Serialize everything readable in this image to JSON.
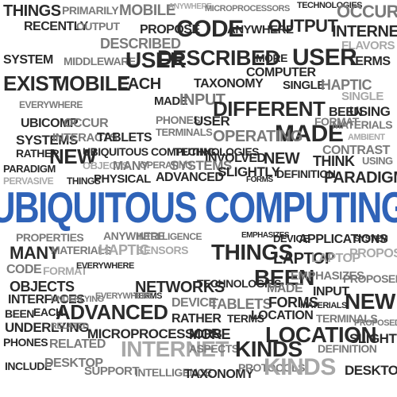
{
  "title": "UBIQUITOUS COMPUTING",
  "colors": {
    "title": "#2f63b8",
    "dark": "#2b2b2b",
    "mid": "#7a7a7a",
    "light": "#a8a8a8",
    "background": "#ffffff"
  },
  "words": [
    "THINGS",
    "PRIMARILY",
    "MOBILE",
    "ANYWHERE",
    "MICROPROCESSORS",
    "TECHNOLOGIES",
    "OCCUR",
    "RECENTLY",
    "OUTPUT",
    "PROPOSE",
    "CODE",
    "ANYWHERE",
    "OUTPUT",
    "INTERNET",
    "DESCRIBED",
    "FLAVORS",
    "SYSTEM",
    "MIDDLEWARE",
    "USER",
    "DESCRIBED",
    "MORE",
    "USER",
    "TERMS",
    "EXIST",
    "MOBILE",
    "EACH",
    "TAXONOMY",
    "COMPUTER",
    "SINGLE",
    "HAPTIC",
    "SINGLE",
    "MADE",
    "INPUT",
    "DIFFERENT",
    "EVERYWHERE",
    "BEEN",
    "USING",
    "UBICOMP",
    "OCCUR",
    "PHONES",
    "USER",
    "MADE",
    "FORMAT",
    "MATERIALS",
    "SYSTEMS",
    "INTERACTS",
    "TABLETS",
    "OPERATING",
    "TERMINALS",
    "AMBIENT",
    "RATHER",
    "NEW",
    "UBIQUITOUS COMPUTING",
    "TECHNOLOGIES",
    "INVOLVED",
    "NEW",
    "CONTRAST",
    "PARADIGM",
    "OBJECTS",
    "MANY",
    "OPERATING",
    "SYSTEMS",
    "SLIGHTLY",
    "DEFINITION",
    "THINK",
    "USING",
    "PERVASIVE",
    "THINGS",
    "PHYSICAL",
    "ADVANCED",
    "FORMS",
    "PARADIGM",
    "PROPERTIES",
    "ANYWHERE",
    "INTELLIGENCE",
    "EMPHASIZES",
    "DEVICE",
    "APPLICATIONS",
    "SYSTEM",
    "MANY",
    "MATERIALS",
    "HAPTIC",
    "SENSORS",
    "THINGS",
    "LAPTOP",
    "LAPTOP",
    "PROPOSE",
    "CODE",
    "FORMAT",
    "EVERYWHERE",
    "BEEN",
    "EMPHASIZES",
    "PROPOSED",
    "OBJECTS",
    "NETWORKS",
    "TERMS",
    "TECHNOLOGIES",
    "MADE",
    "INPUT",
    "NEW",
    "INTERFACES",
    "UNDERLYING",
    "EVERYWHERE",
    "DEVICE",
    "TABLETS",
    "FORMS",
    "MATERIALS",
    "BEEN",
    "EACH",
    "ADVANCED",
    "RATHER",
    "TERMS",
    "LOCATION",
    "TERMINALS",
    "UNDERLYING",
    "RELATED",
    "MICROPROCESSORS",
    "MORE",
    "LOCATION",
    "PROPOSED",
    "PHONES",
    "RELATED",
    "INTERNET",
    "ASPECTS",
    "KINDS",
    "DEFINITION",
    "SLIGHTLY",
    "INCLUDE",
    "DESKTOP",
    "SUPPORT",
    "INTELLIGENCE",
    "TAXONOMY",
    "PROTOCOLS",
    "KINDS",
    "DESKTOP"
  ]
}
